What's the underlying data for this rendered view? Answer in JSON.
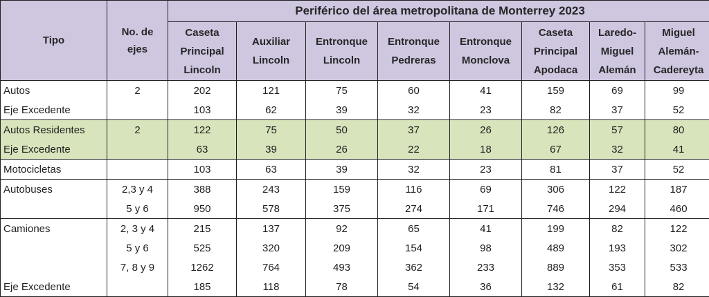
{
  "header": {
    "tipo": "Tipo",
    "ejes_line1": "No. de",
    "ejes_line2": "ejes",
    "title": "Periférico del área metropolitana de Monterrey 2023",
    "columns": [
      [
        "Caseta",
        "Principal",
        "Lincoln"
      ],
      [
        "Auxiliar",
        "Lincoln"
      ],
      [
        "Entronque",
        "Lincoln"
      ],
      [
        "Entronque",
        "Pedreras"
      ],
      [
        "Entronque",
        "Monclova"
      ],
      [
        "Caseta",
        "Principal",
        "Apodaca"
      ],
      [
        "Laredo-",
        "Miguel",
        "Alemán"
      ],
      [
        "Miguel",
        "Alemán-",
        "Cadereyta"
      ]
    ]
  },
  "rows": [
    {
      "tipo": "Autos",
      "ejes": "2",
      "values": [
        "202",
        "121",
        "75",
        "60",
        "41",
        "159",
        "69",
        "99"
      ]
    },
    {
      "tipo": "Eje Excedente",
      "ejes": "",
      "values": [
        "103",
        "62",
        "39",
        "32",
        "23",
        "82",
        "37",
        "52"
      ]
    },
    {
      "tipo": "Autos Residentes",
      "ejes": "2",
      "values": [
        "122",
        "75",
        "50",
        "37",
        "26",
        "126",
        "57",
        "80"
      ]
    },
    {
      "tipo": "Eje Excedente",
      "ejes": "",
      "values": [
        "63",
        "39",
        "26",
        "22",
        "18",
        "67",
        "32",
        "41"
      ]
    },
    {
      "tipo": "Motocicletas",
      "ejes": "",
      "values": [
        "103",
        "63",
        "39",
        "32",
        "23",
        "81",
        "37",
        "52"
      ]
    },
    {
      "tipo": "Autobuses",
      "ejes": "2,3 y 4",
      "values": [
        "388",
        "243",
        "159",
        "116",
        "69",
        "306",
        "122",
        "187"
      ]
    },
    {
      "tipo": "",
      "ejes": "5 y 6",
      "values": [
        "950",
        "578",
        "375",
        "274",
        "171",
        "746",
        "294",
        "460"
      ]
    },
    {
      "tipo": "Camiones",
      "ejes": "2, 3 y 4",
      "values": [
        "215",
        "137",
        "92",
        "65",
        "41",
        "199",
        "82",
        "122"
      ]
    },
    {
      "tipo": "",
      "ejes": "5 y 6",
      "values": [
        "525",
        "320",
        "209",
        "154",
        "98",
        "489",
        "193",
        "302"
      ]
    },
    {
      "tipo": "",
      "ejes": "7, 8 y 9",
      "values": [
        "1262",
        "764",
        "493",
        "362",
        "233",
        "889",
        "353",
        "533"
      ]
    },
    {
      "tipo": "Eje Excedente",
      "ejes": "",
      "values": [
        "185",
        "118",
        "78",
        "54",
        "36",
        "132",
        "61",
        "82"
      ]
    }
  ]
}
